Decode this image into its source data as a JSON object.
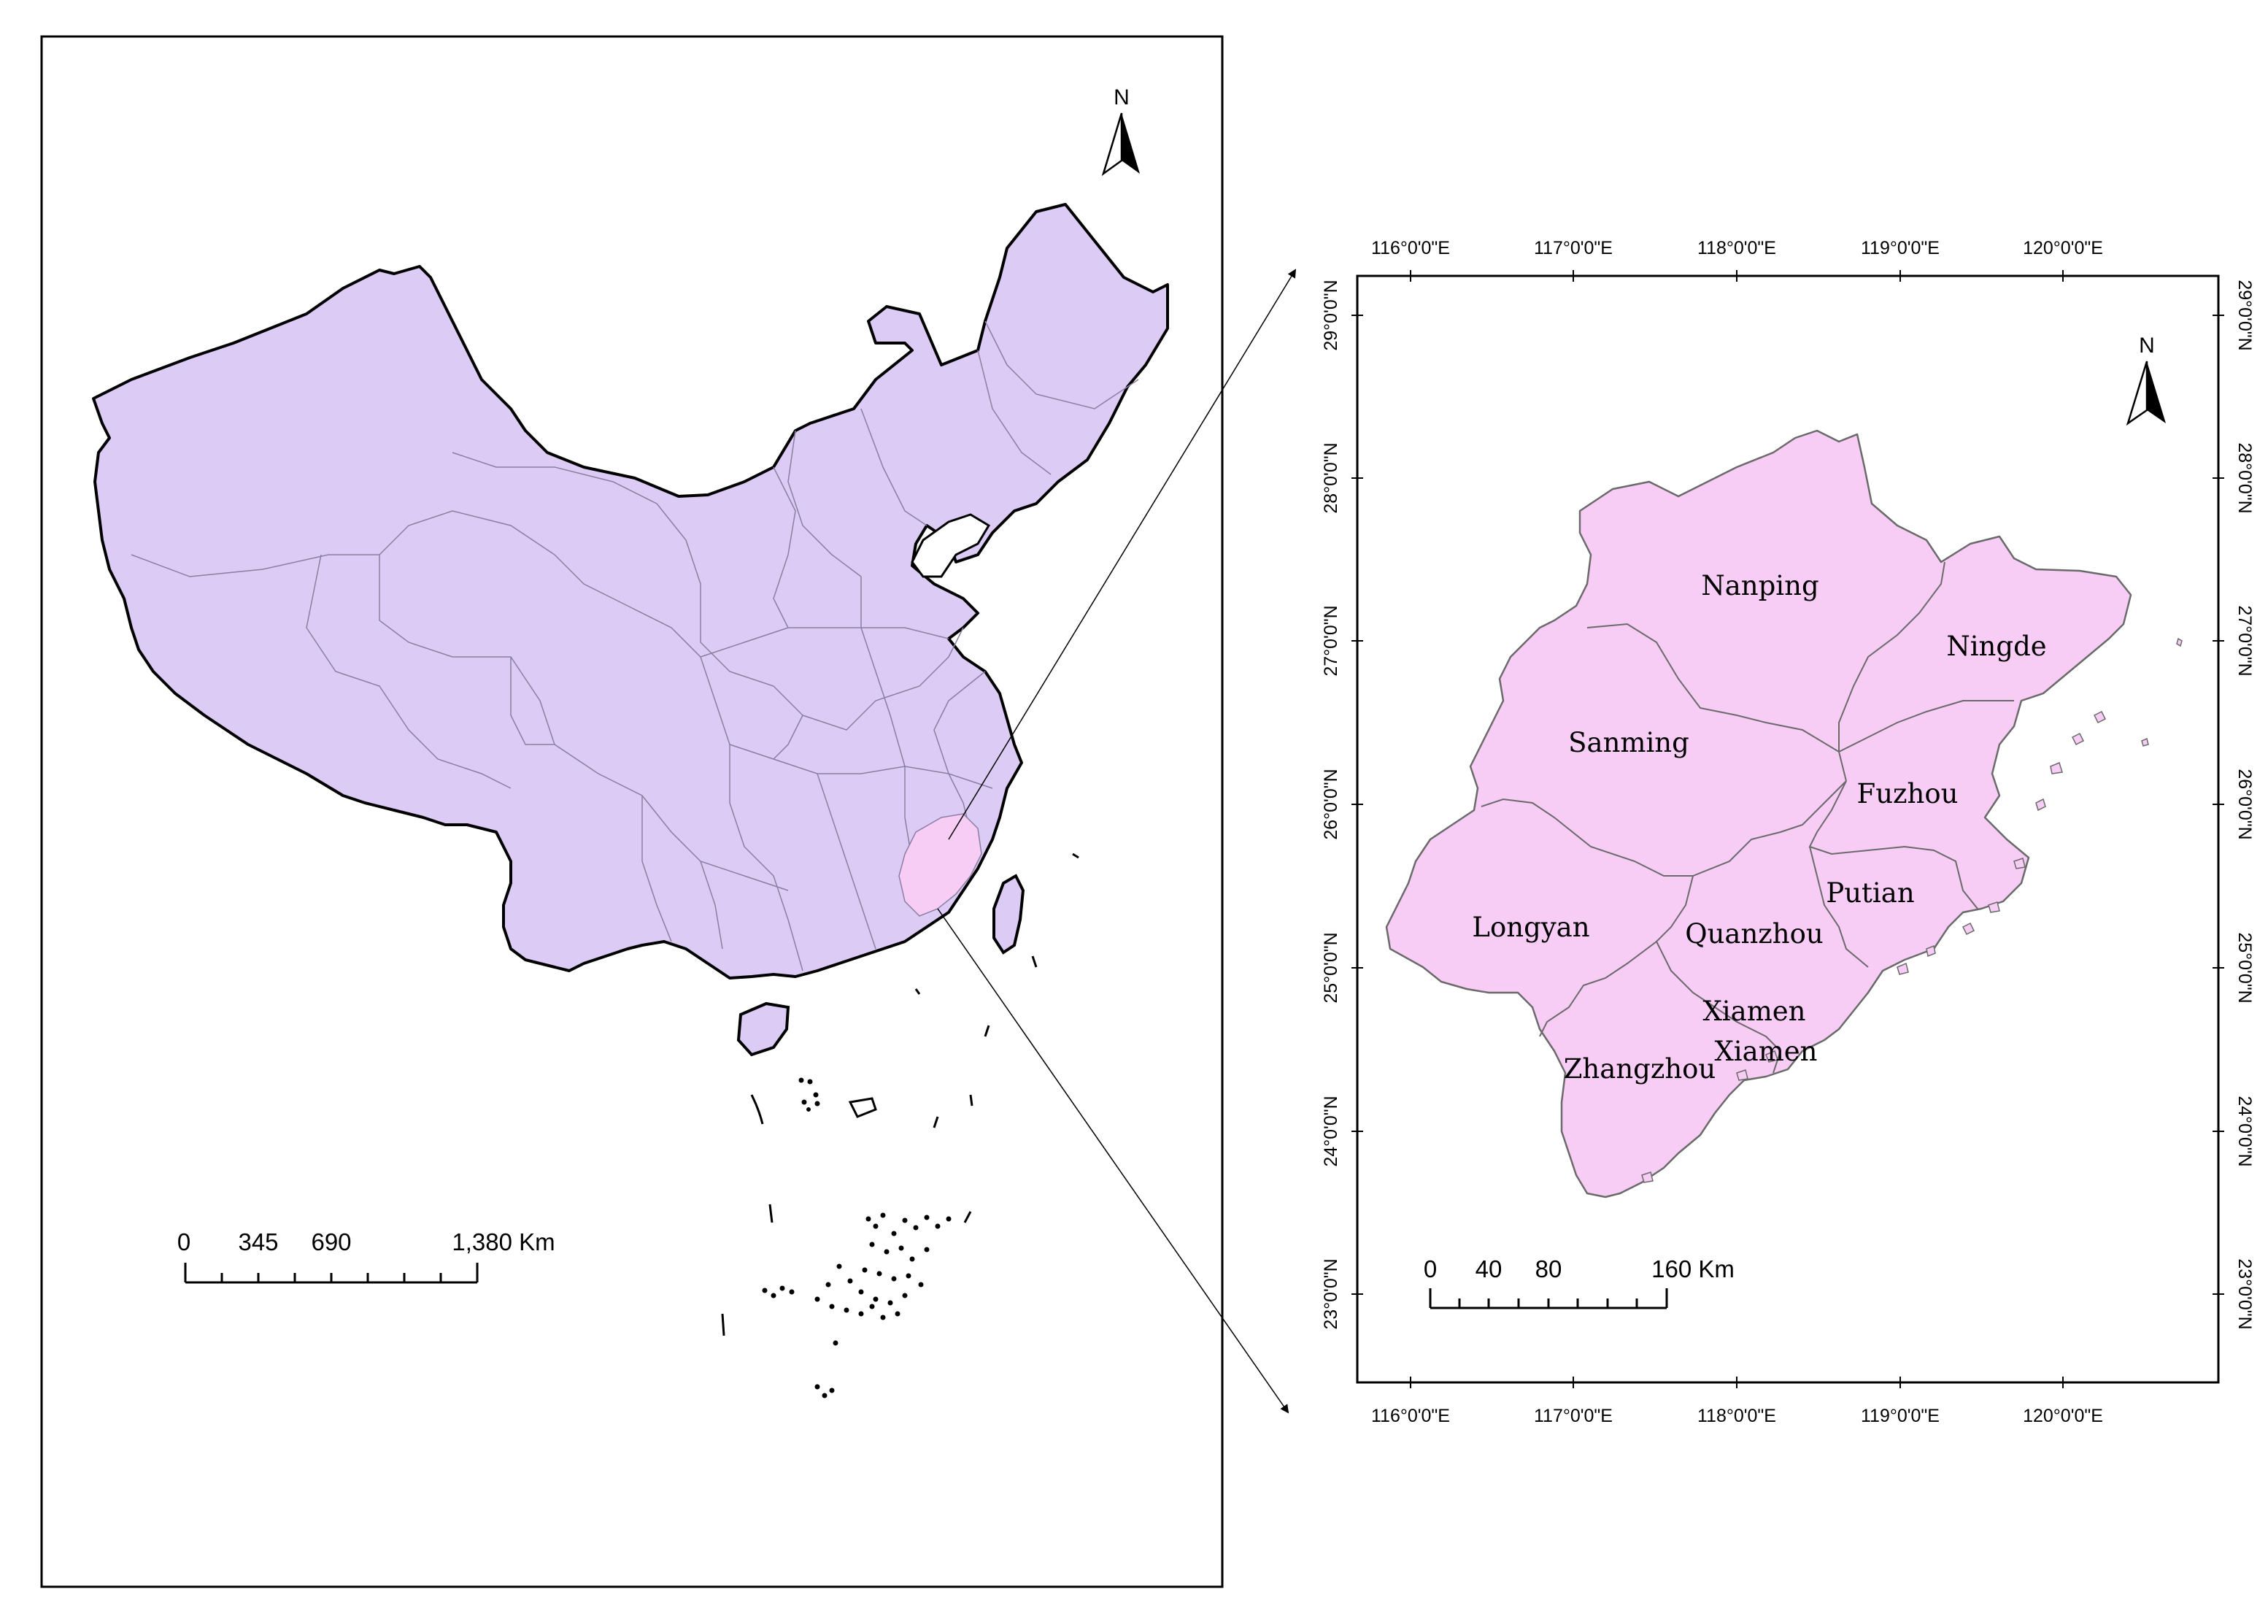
{
  "north_symbol": "N",
  "overview_map": {
    "scale_labels": [
      "0",
      "345",
      "690",
      "1,380 Km"
    ],
    "fill_color": "#dccbf5",
    "highlight_color": "#f7ccf5"
  },
  "inset_map": {
    "fill_color": "#f7ccf5",
    "scale_labels": [
      "0",
      "40",
      "80",
      "160 Km"
    ],
    "longitudes": [
      "116°0'0\"E",
      "117°0'0\"E",
      "118°0'0\"E",
      "119°0'0\"E",
      "120°0'0\"E"
    ],
    "latitudes": [
      "29°0'0\"N",
      "28°0'0\"N",
      "27°0'0\"N",
      "26°0'0\"N",
      "25°0'0\"N",
      "24°0'0\"N",
      "23°0'0\"N"
    ],
    "cities": [
      "Nanping",
      "Ningde",
      "Sanming",
      "Fuzhou",
      "Putian",
      "Longyan",
      "Quanzhou",
      "Xiamen",
      "Xiamen",
      "Zhangzhou"
    ]
  }
}
